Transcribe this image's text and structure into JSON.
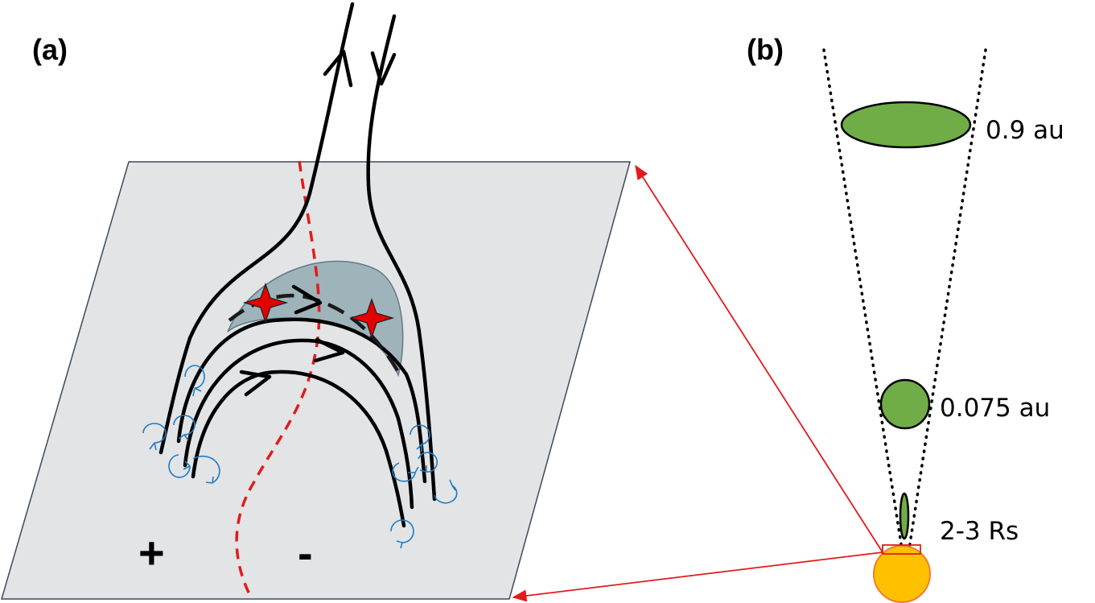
{
  "panels": {
    "a_label": "(a)",
    "b_label": "(b)"
  },
  "polarity": {
    "positive": "+",
    "negative": "-"
  },
  "distances": {
    "far": "0.9 au",
    "mid": "0.075 au",
    "near": "2-3 Rs"
  },
  "colors": {
    "plane_fill": "#e3e4e6",
    "plane_edge": "#3d4a5c",
    "dome_fill": "#9fb3ba",
    "pil_line": "#e21b1b",
    "flux_rope": "#70ad47",
    "sun": "#ffc000",
    "swirl": "#1f7bc4",
    "reconnection_star": "#e50000"
  }
}
